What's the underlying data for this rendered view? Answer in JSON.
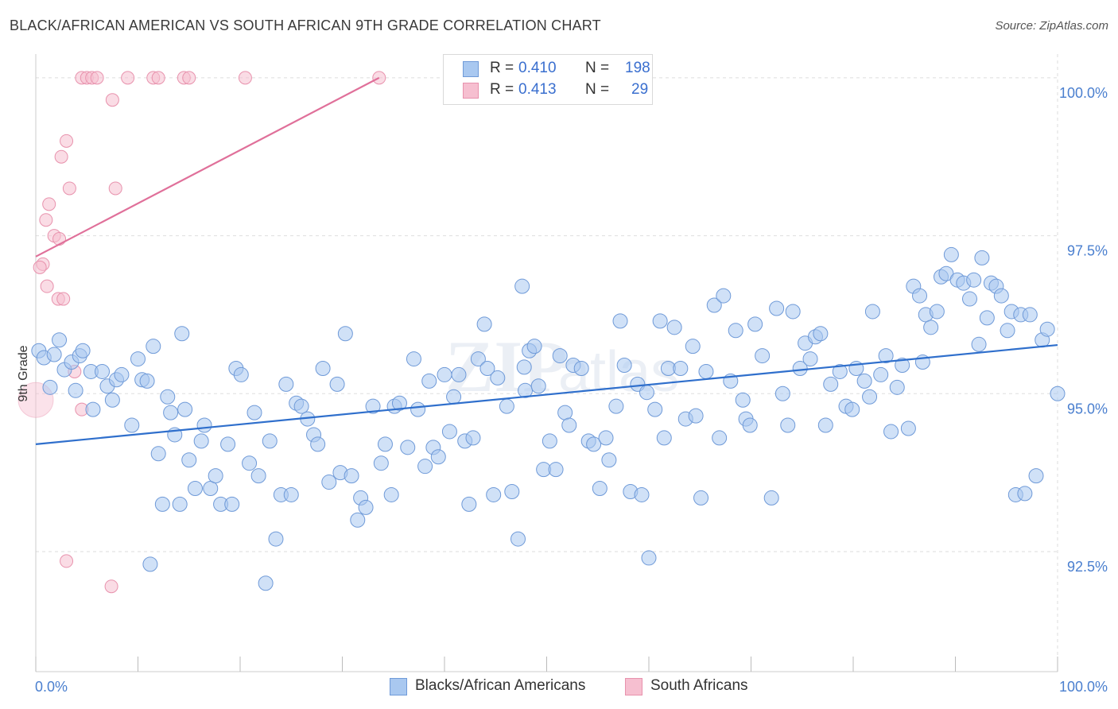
{
  "header": {
    "title": "BLACK/AFRICAN AMERICAN VS SOUTH AFRICAN 9TH GRADE CORRELATION CHART",
    "source": "Source: ZipAtlas.com"
  },
  "legend": {
    "series": [
      {
        "r_label": "R =",
        "r_value": "0.410",
        "n_label": "N =",
        "n_value": "198"
      },
      {
        "r_label": "R =",
        "r_value": "0.413",
        "n_label": "N =",
        "n_value": "29"
      }
    ],
    "bottom": [
      "Blacks/African Americans",
      "South Africans"
    ]
  },
  "colors": {
    "blue_fill": "#a9c8f0",
    "blue_stroke": "#6f9ad8",
    "blue_line": "#2f6fcc",
    "pink_fill": "#f6bfd0",
    "pink_stroke": "#e892ad",
    "pink_line": "#e0709a",
    "grid": "#dddddd",
    "tick_text": "#4a7fcf"
  },
  "chart_data": {
    "type": "scatter",
    "title": "BLACK/AFRICAN AMERICAN VS SOUTH AFRICAN 9TH GRADE CORRELATION CHART",
    "xlabel": "",
    "ylabel": "9th Grade",
    "x_tick_labels": [
      "0.0%",
      "100.0%"
    ],
    "y_tick_labels": [
      "92.5%",
      "95.0%",
      "97.5%",
      "100.0%"
    ],
    "xlim": [
      0,
      100
    ],
    "ylim": [
      90.6,
      100.25
    ],
    "grid": true,
    "legend_position": "top-center",
    "series": [
      {
        "name": "Blacks/African Americans",
        "r": 0.41,
        "n": 198,
        "trend": {
          "x": [
            0,
            100
          ],
          "y": [
            94.2,
            95.77
          ]
        },
        "points": [
          [
            0.3,
            95.68
          ],
          [
            0.8,
            95.57
          ],
          [
            1.4,
            95.1
          ],
          [
            1.8,
            95.62
          ],
          [
            2.3,
            95.85
          ],
          [
            2.8,
            95.38
          ],
          [
            3.5,
            95.5
          ],
          [
            3.9,
            95.05
          ],
          [
            4.3,
            95.6
          ],
          [
            4.6,
            95.68
          ],
          [
            5.4,
            95.35
          ],
          [
            5.6,
            94.75
          ],
          [
            6.5,
            95.35
          ],
          [
            7.0,
            95.12
          ],
          [
            7.5,
            94.9
          ],
          [
            7.9,
            95.22
          ],
          [
            8.4,
            95.3
          ],
          [
            9.4,
            94.5
          ],
          [
            10.0,
            95.55
          ],
          [
            10.4,
            95.22
          ],
          [
            10.9,
            95.2
          ],
          [
            11.5,
            95.75
          ],
          [
            12.0,
            94.05
          ],
          [
            12.4,
            93.25
          ],
          [
            12.9,
            94.95
          ],
          [
            13.2,
            94.7
          ],
          [
            13.6,
            94.35
          ],
          [
            14.1,
            93.25
          ],
          [
            14.6,
            94.75
          ],
          [
            15.0,
            93.95
          ],
          [
            15.6,
            93.5
          ],
          [
            16.2,
            94.25
          ],
          [
            16.5,
            94.5
          ],
          [
            17.1,
            93.5
          ],
          [
            17.6,
            93.7
          ],
          [
            18.1,
            93.25
          ],
          [
            18.8,
            94.2
          ],
          [
            19.2,
            93.25
          ],
          [
            19.6,
            95.4
          ],
          [
            20.1,
            95.3
          ],
          [
            20.9,
            93.9
          ],
          [
            21.4,
            94.7
          ],
          [
            21.8,
            93.7
          ],
          [
            22.9,
            94.25
          ],
          [
            23.5,
            92.7
          ],
          [
            24.0,
            93.4
          ],
          [
            24.5,
            95.15
          ],
          [
            25.0,
            93.4
          ],
          [
            25.5,
            94.85
          ],
          [
            26.0,
            94.8
          ],
          [
            26.6,
            94.6
          ],
          [
            27.2,
            94.35
          ],
          [
            27.6,
            94.2
          ],
          [
            28.1,
            95.4
          ],
          [
            28.7,
            93.6
          ],
          [
            29.5,
            95.15
          ],
          [
            29.8,
            93.75
          ],
          [
            30.3,
            95.95
          ],
          [
            30.9,
            93.7
          ],
          [
            31.5,
            93.0
          ],
          [
            31.8,
            93.35
          ],
          [
            32.3,
            93.2
          ],
          [
            33.0,
            94.8
          ],
          [
            33.8,
            93.9
          ],
          [
            34.2,
            94.2
          ],
          [
            34.8,
            93.4
          ],
          [
            35.1,
            94.8
          ],
          [
            35.6,
            94.85
          ],
          [
            36.4,
            94.15
          ],
          [
            37.0,
            95.55
          ],
          [
            37.4,
            94.75
          ],
          [
            38.1,
            93.85
          ],
          [
            38.5,
            95.2
          ],
          [
            38.9,
            94.15
          ],
          [
            39.4,
            94.0
          ],
          [
            40.0,
            95.3
          ],
          [
            40.5,
            94.4
          ],
          [
            40.9,
            94.95
          ],
          [
            41.4,
            95.3
          ],
          [
            42.0,
            94.25
          ],
          [
            42.4,
            93.25
          ],
          [
            42.8,
            94.3
          ],
          [
            43.3,
            95.55
          ],
          [
            43.9,
            96.1
          ],
          [
            44.2,
            95.4
          ],
          [
            44.8,
            93.4
          ],
          [
            45.2,
            95.25
          ],
          [
            46.1,
            94.8
          ],
          [
            46.6,
            93.45
          ],
          [
            47.2,
            92.7
          ],
          [
            47.6,
            96.7
          ],
          [
            47.9,
            95.05
          ],
          [
            48.3,
            95.68
          ],
          [
            48.8,
            95.75
          ],
          [
            49.2,
            95.12
          ],
          [
            49.7,
            93.8
          ],
          [
            50.3,
            94.25
          ],
          [
            50.9,
            93.8
          ],
          [
            51.3,
            95.6
          ],
          [
            51.8,
            94.7
          ],
          [
            52.2,
            94.5
          ],
          [
            52.6,
            95.45
          ],
          [
            53.4,
            95.4
          ],
          [
            54.1,
            94.25
          ],
          [
            54.6,
            94.2
          ],
          [
            55.2,
            93.5
          ],
          [
            55.8,
            94.3
          ],
          [
            56.1,
            93.95
          ],
          [
            56.8,
            94.8
          ],
          [
            57.2,
            96.15
          ],
          [
            57.6,
            95.45
          ],
          [
            58.2,
            93.45
          ],
          [
            58.9,
            95.15
          ],
          [
            59.3,
            93.4
          ],
          [
            59.8,
            95.02
          ],
          [
            60.0,
            92.4
          ],
          [
            60.6,
            94.75
          ],
          [
            61.1,
            96.15
          ],
          [
            61.5,
            94.3
          ],
          [
            61.9,
            95.4
          ],
          [
            62.5,
            96.05
          ],
          [
            63.1,
            95.4
          ],
          [
            63.6,
            94.6
          ],
          [
            64.3,
            95.75
          ],
          [
            64.6,
            94.65
          ],
          [
            65.1,
            93.35
          ],
          [
            65.6,
            95.35
          ],
          [
            66.4,
            96.4
          ],
          [
            66.9,
            94.3
          ],
          [
            67.3,
            96.55
          ],
          [
            68.0,
            95.2
          ],
          [
            68.5,
            96.0
          ],
          [
            69.2,
            94.9
          ],
          [
            69.5,
            94.6
          ],
          [
            69.9,
            94.5
          ],
          [
            70.4,
            96.1
          ],
          [
            71.1,
            95.6
          ],
          [
            72.0,
            93.35
          ],
          [
            72.5,
            96.35
          ],
          [
            73.1,
            95.0
          ],
          [
            73.6,
            94.5
          ],
          [
            74.1,
            96.3
          ],
          [
            74.8,
            95.4
          ],
          [
            75.3,
            95.8
          ],
          [
            75.8,
            95.55
          ],
          [
            76.3,
            95.9
          ],
          [
            76.8,
            95.95
          ],
          [
            77.3,
            94.5
          ],
          [
            77.8,
            95.15
          ],
          [
            78.7,
            95.35
          ],
          [
            79.3,
            94.8
          ],
          [
            79.9,
            94.75
          ],
          [
            80.3,
            95.4
          ],
          [
            81.1,
            95.2
          ],
          [
            81.6,
            94.95
          ],
          [
            81.9,
            96.3
          ],
          [
            82.7,
            95.3
          ],
          [
            83.2,
            95.6
          ],
          [
            83.7,
            94.4
          ],
          [
            84.3,
            95.1
          ],
          [
            84.8,
            95.45
          ],
          [
            85.4,
            94.45
          ],
          [
            85.9,
            96.7
          ],
          [
            86.5,
            96.55
          ],
          [
            87.1,
            96.25
          ],
          [
            87.6,
            96.05
          ],
          [
            88.2,
            96.3
          ],
          [
            88.6,
            96.85
          ],
          [
            89.1,
            96.9
          ],
          [
            89.6,
            97.2
          ],
          [
            90.2,
            96.8
          ],
          [
            90.8,
            96.75
          ],
          [
            91.4,
            96.5
          ],
          [
            91.8,
            96.8
          ],
          [
            92.3,
            95.78
          ],
          [
            92.6,
            97.15
          ],
          [
            93.1,
            96.2
          ],
          [
            93.5,
            96.75
          ],
          [
            94.0,
            96.7
          ],
          [
            94.5,
            96.55
          ],
          [
            95.1,
            96.0
          ],
          [
            95.5,
            96.3
          ],
          [
            95.9,
            93.4
          ],
          [
            96.4,
            96.25
          ],
          [
            96.8,
            93.42
          ],
          [
            97.3,
            96.25
          ],
          [
            97.9,
            93.7
          ],
          [
            98.5,
            95.85
          ],
          [
            99.0,
            96.02
          ],
          [
            100.0,
            95.0
          ],
          [
            14.3,
            95.95
          ],
          [
            22.5,
            92.0
          ],
          [
            47.8,
            95.42
          ],
          [
            11.2,
            92.3
          ],
          [
            86.8,
            95.5
          ]
        ]
      },
      {
        "name": "South Africans",
        "r": 0.413,
        "n": 29,
        "trend": {
          "x": [
            0,
            33.6
          ],
          "y": [
            97.17,
            100.0
          ]
        },
        "points": [
          [
            4.5,
            100.0
          ],
          [
            5.0,
            100.0
          ],
          [
            5.5,
            100.0
          ],
          [
            6.0,
            100.0
          ],
          [
            9.0,
            100.0
          ],
          [
            11.5,
            100.0
          ],
          [
            12.0,
            100.0
          ],
          [
            14.5,
            100.0
          ],
          [
            15.0,
            100.0
          ],
          [
            20.5,
            100.0
          ],
          [
            33.6,
            100.0
          ],
          [
            7.5,
            99.65
          ],
          [
            3.0,
            99.0
          ],
          [
            2.5,
            98.75
          ],
          [
            3.3,
            98.25
          ],
          [
            7.8,
            98.25
          ],
          [
            1.3,
            98.0
          ],
          [
            1.0,
            97.75
          ],
          [
            1.8,
            97.5
          ],
          [
            2.3,
            97.45
          ],
          [
            0.7,
            97.05
          ],
          [
            0.4,
            97.0
          ],
          [
            1.1,
            96.7
          ],
          [
            2.2,
            96.5
          ],
          [
            2.7,
            96.5
          ],
          [
            3.8,
            95.35
          ],
          [
            4.5,
            94.75
          ],
          [
            3.0,
            92.35
          ],
          [
            7.4,
            91.95
          ]
        ]
      }
    ]
  }
}
